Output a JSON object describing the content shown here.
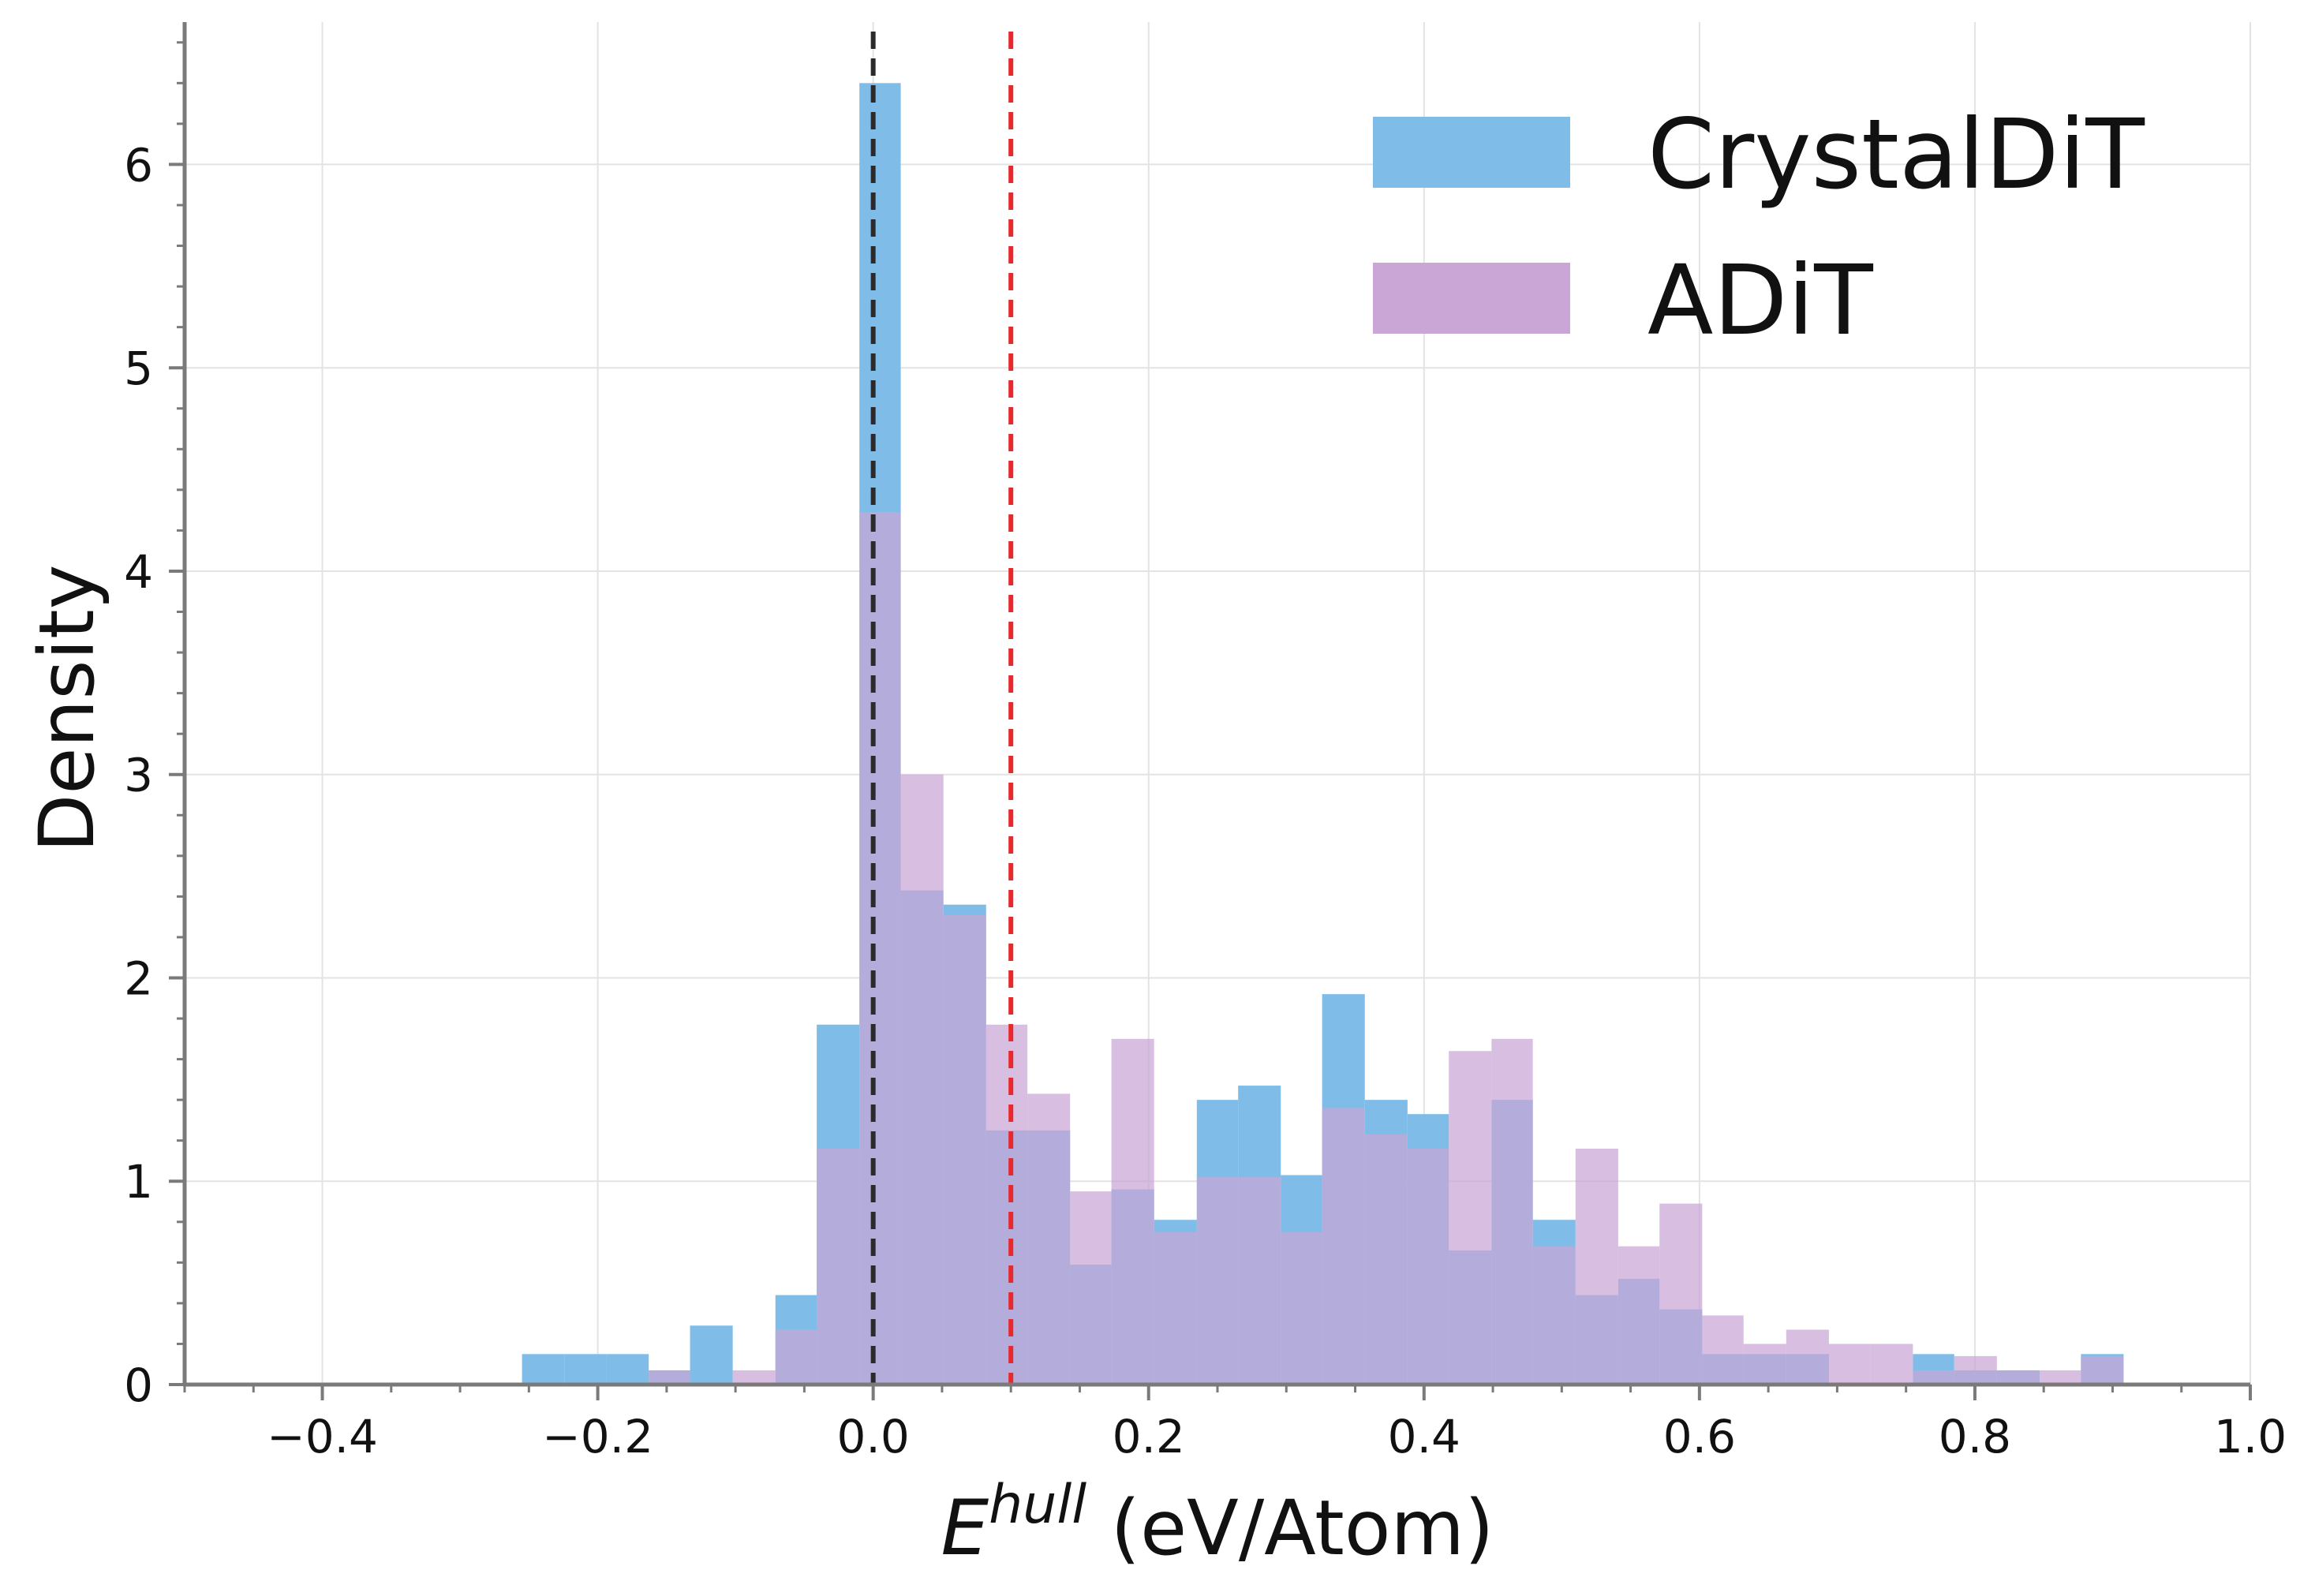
{
  "chart_data": {
    "type": "bar",
    "subtype": "overlaid-histogram",
    "title": "",
    "xlabel_main": "E",
    "xlabel_sup": "hull",
    "xlabel_unit": " (eV/Atom)",
    "ylabel": "Density",
    "xlim": [
      -0.5,
      1.0
    ],
    "ylim": [
      0,
      6.7
    ],
    "xticks": [
      -0.4,
      -0.2,
      0.0,
      0.2,
      0.4,
      0.6,
      0.8,
      1.0
    ],
    "xtick_labels": [
      "−0.4",
      "−0.2",
      "0.0",
      "0.2",
      "0.4",
      "0.6",
      "0.8",
      "1.0"
    ],
    "yticks": [
      0,
      1,
      2,
      3,
      4,
      5,
      6
    ],
    "ytick_labels": [
      "0",
      "1",
      "2",
      "3",
      "4",
      "5",
      "6"
    ],
    "grid": true,
    "legend_position": "top-right",
    "reference_lines": [
      {
        "name": "zero-line",
        "x": 0.0,
        "color": "#2b2b2b",
        "style": "dashed"
      },
      {
        "name": "threshold-line",
        "x": 0.1,
        "color": "#e8282b",
        "style": "dashed"
      }
    ],
    "series": [
      {
        "name": "CrystalDiT",
        "color": "#7fbde8",
        "bins": [
          [
            -0.255,
            -0.224,
            0.15
          ],
          [
            -0.224,
            -0.194,
            0.15
          ],
          [
            -0.194,
            -0.163,
            0.15
          ],
          [
            -0.163,
            -0.133,
            0.07
          ],
          [
            -0.133,
            -0.102,
            0.29
          ],
          [
            -0.102,
            -0.071,
            0.0
          ],
          [
            -0.071,
            -0.041,
            0.44
          ],
          [
            -0.041,
            -0.01,
            1.77
          ],
          [
            -0.01,
            0.02,
            6.4
          ],
          [
            0.02,
            0.051,
            2.43
          ],
          [
            0.051,
            0.082,
            2.36
          ],
          [
            0.082,
            0.112,
            1.25
          ],
          [
            0.112,
            0.143,
            1.25
          ],
          [
            0.143,
            0.173,
            0.59
          ],
          [
            0.173,
            0.204,
            0.96
          ],
          [
            0.204,
            0.235,
            0.81
          ],
          [
            0.235,
            0.265,
            1.4
          ],
          [
            0.265,
            0.296,
            1.47
          ],
          [
            0.296,
            0.326,
            1.03
          ],
          [
            0.326,
            0.357,
            1.92
          ],
          [
            0.357,
            0.388,
            1.4
          ],
          [
            0.388,
            0.418,
            1.33
          ],
          [
            0.418,
            0.449,
            0.66
          ],
          [
            0.449,
            0.479,
            1.4
          ],
          [
            0.479,
            0.51,
            0.81
          ],
          [
            0.51,
            0.541,
            0.44
          ],
          [
            0.541,
            0.571,
            0.52
          ],
          [
            0.571,
            0.602,
            0.37
          ],
          [
            0.602,
            0.632,
            0.15
          ],
          [
            0.632,
            0.663,
            0.15
          ],
          [
            0.663,
            0.694,
            0.15
          ],
          [
            0.694,
            0.724,
            0.0
          ],
          [
            0.724,
            0.755,
            0.0
          ],
          [
            0.755,
            0.785,
            0.15
          ],
          [
            0.785,
            0.816,
            0.07
          ],
          [
            0.816,
            0.847,
            0.07
          ],
          [
            0.847,
            0.877,
            0.0
          ],
          [
            0.877,
            0.908,
            0.15
          ]
        ]
      },
      {
        "name": "ADiT",
        "color": "#c9a6d6",
        "bins": [
          [
            -0.163,
            -0.133,
            0.07
          ],
          [
            -0.102,
            -0.071,
            0.07
          ],
          [
            -0.071,
            -0.041,
            0.27
          ],
          [
            -0.041,
            -0.01,
            1.16
          ],
          [
            -0.01,
            0.02,
            4.29
          ],
          [
            0.02,
            0.051,
            3.0
          ],
          [
            0.051,
            0.082,
            2.31
          ],
          [
            0.082,
            0.112,
            1.77
          ],
          [
            0.112,
            0.143,
            1.43
          ],
          [
            0.143,
            0.173,
            0.95
          ],
          [
            0.173,
            0.204,
            1.7
          ],
          [
            0.204,
            0.235,
            0.75
          ],
          [
            0.235,
            0.265,
            1.02
          ],
          [
            0.265,
            0.296,
            1.02
          ],
          [
            0.296,
            0.326,
            0.75
          ],
          [
            0.326,
            0.357,
            1.36
          ],
          [
            0.357,
            0.388,
            1.23
          ],
          [
            0.388,
            0.418,
            1.16
          ],
          [
            0.418,
            0.449,
            1.64
          ],
          [
            0.449,
            0.479,
            1.7
          ],
          [
            0.479,
            0.51,
            0.68
          ],
          [
            0.51,
            0.541,
            1.16
          ],
          [
            0.541,
            0.571,
            0.68
          ],
          [
            0.571,
            0.602,
            0.89
          ],
          [
            0.602,
            0.632,
            0.34
          ],
          [
            0.632,
            0.663,
            0.2
          ],
          [
            0.663,
            0.694,
            0.27
          ],
          [
            0.694,
            0.724,
            0.2
          ],
          [
            0.724,
            0.755,
            0.2
          ],
          [
            0.755,
            0.785,
            0.07
          ],
          [
            0.785,
            0.816,
            0.14
          ],
          [
            0.816,
            0.847,
            0.07
          ],
          [
            0.847,
            0.877,
            0.07
          ],
          [
            0.877,
            0.908,
            0.14
          ]
        ]
      }
    ]
  }
}
